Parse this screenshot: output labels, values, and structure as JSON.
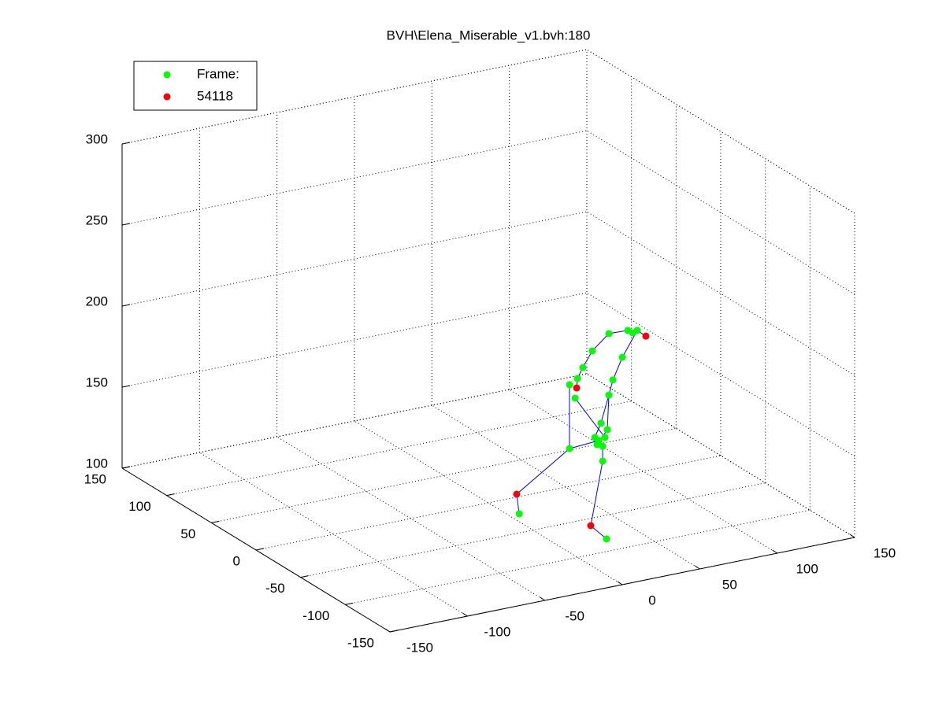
{
  "chart_data": {
    "type": "scatter3",
    "title": "BVH\\Elena_Miserable_v1.bvh:180",
    "xlim": [
      -150,
      150
    ],
    "ylim": [
      -150,
      150
    ],
    "zlim": [
      100,
      300
    ],
    "xticks": [
      -150,
      -100,
      -50,
      0,
      50,
      100,
      150
    ],
    "yticks": [
      -150,
      -100,
      -50,
      0,
      50,
      100,
      150
    ],
    "zticks": [
      100,
      150,
      200,
      250,
      300
    ],
    "grid": true,
    "legend": "upper left",
    "series": [
      {
        "name": "Frame:",
        "color": "#00ff00",
        "x": [
          -14.7,
          17.8,
          17.8,
          21.4,
          22.9,
          26.4,
          32.5,
          43.2,
          55.4,
          58.5,
          61.5,
          51.9,
          45.8,
          43.2,
          38.1,
          42.2,
          40.7,
          36.6,
          34.1,
          35.6,
          39.2,
          39.2,
          41.7
        ],
        "y": [
          -60,
          -60,
          -60,
          -60,
          -60,
          -60,
          -60,
          -60,
          -60,
          -60,
          -60,
          -60,
          -60,
          -60,
          -60,
          -60,
          -60,
          -60,
          -60,
          -60,
          -60,
          -60,
          -60
        ],
        "z": [
          116.3,
          150.2,
          189.6,
          180.6,
          192.4,
          198.5,
          207.6,
          216.2,
          215.8,
          213.7,
          214.6,
          199.9,
          187.1,
          178.3,
          161.9,
          157.1,
          152.6,
          151.5,
          153.9,
          149.2,
          147.5,
          138.3,
          89.8
        ]
      },
      {
        "name": "54118",
        "color": "#ff0000",
        "x": [
          -16.3,
          22.4,
          67.1,
          31.5
        ],
        "y": [
          -60,
          -60,
          -60,
          -60
        ],
        "z": [
          128.7,
          186.7,
          210.0,
          100.0
        ]
      }
    ],
    "lines": {
      "color": "#0000ff",
      "x": [
        -14.7,
        -16.3,
        17.8,
        36.6,
        null,
        41.7,
        31.5,
        39.2,
        39.2,
        null,
        36.6,
        34.1,
        38.1,
        43.2,
        45.8,
        51.9,
        61.5,
        58.5,
        55.4,
        43.2,
        32.5,
        26.4,
        22.9,
        22.4,
        null,
        17.8,
        17.8,
        null,
        21.4,
        40.7,
        null,
        61.5,
        67.1,
        null,
        43.2,
        42.2,
        35.6
      ],
      "y": [
        -60,
        -60,
        -60,
        -60,
        null,
        -60,
        -60,
        -60,
        -60,
        null,
        -60,
        -60,
        -60,
        -60,
        -60,
        -60,
        -60,
        -60,
        -60,
        -60,
        -60,
        -60,
        -60,
        -60,
        null,
        -60,
        -60,
        null,
        -60,
        -60,
        null,
        -60,
        -60,
        null,
        -60,
        -60,
        -60
      ],
      "z": [
        116.3,
        128.7,
        150.2,
        151.5,
        null,
        89.8,
        100.0,
        138.3,
        147.5,
        null,
        151.5,
        153.9,
        161.9,
        178.3,
        187.1,
        199.9,
        214.6,
        213.7,
        215.8,
        216.2,
        207.6,
        198.5,
        192.4,
        186.7,
        null,
        189.6,
        150.2,
        null,
        180.6,
        152.6,
        null,
        214.6,
        210.0,
        null,
        178.3,
        157.1,
        149.2
      ]
    }
  }
}
